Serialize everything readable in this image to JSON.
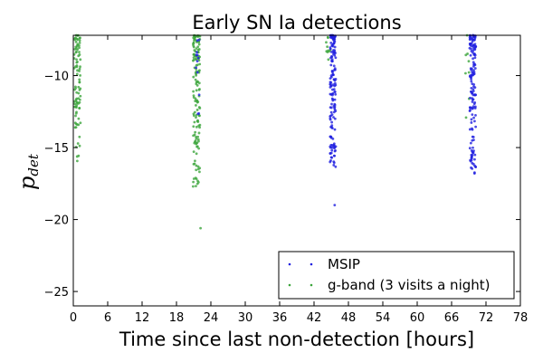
{
  "chart_data": {
    "type": "scatter",
    "title": "Early SN Ia detections",
    "xlabel": "Time since last non-detection [hours]",
    "ylabel_main": "p",
    "ylabel_sub": "det",
    "xlim": [
      0,
      78
    ],
    "ylim": [
      -26,
      -7.2
    ],
    "xticks": [
      "0",
      "6",
      "12",
      "18",
      "24",
      "30",
      "36",
      "42",
      "48",
      "54",
      "60",
      "66",
      "72",
      "78"
    ],
    "yticks": [
      "−10",
      "−15",
      "−20",
      "−25"
    ],
    "ytick_values": [
      -10,
      -15,
      -20,
      -25
    ],
    "legend_position": "lower-right",
    "colors": {
      "MSIP": "#1f1fe0",
      "g-band": "#3ca53c"
    },
    "series": [
      {
        "name": "MSIP",
        "color": "#1f1fe0",
        "clusters": [
          {
            "x_center": 45.3,
            "x_spread": 0.5,
            "y_min": -16.5,
            "y_max": -7.2,
            "n": 150,
            "outliers": [
              [
                45.6,
                -19.0
              ],
              [
                44.8,
                -16.0
              ],
              [
                45.1,
                -15.7
              ]
            ]
          },
          {
            "x_center": 69.7,
            "x_spread": 0.55,
            "y_min": -16.8,
            "y_max": -7.2,
            "n": 150,
            "outliers": [
              [
                70.0,
                -16.8
              ],
              [
                69.4,
                -16.4
              ]
            ]
          },
          {
            "x_center": 21.7,
            "x_spread": 0.35,
            "y_min": -13.0,
            "y_max": -7.2,
            "n": 12,
            "outliers": []
          }
        ]
      },
      {
        "name": "g-band (3 visits a night)",
        "color": "#3ca53c",
        "clusters": [
          {
            "x_center": 0.7,
            "x_spread": 0.55,
            "y_min": -16.0,
            "y_max": -7.2,
            "n": 90,
            "outliers": []
          },
          {
            "x_center": 21.5,
            "x_spread": 0.6,
            "y_min": -17.8,
            "y_max": -7.2,
            "n": 140,
            "outliers": [
              [
                22.2,
                -20.6
              ],
              [
                20.9,
                -17.7
              ]
            ]
          },
          {
            "x_center": 44.5,
            "x_spread": 0.4,
            "y_min": -9.0,
            "y_max": -7.2,
            "n": 10,
            "outliers": []
          },
          {
            "x_center": 68.8,
            "x_spread": 0.4,
            "y_min": -13.5,
            "y_max": -7.2,
            "n": 8,
            "outliers": []
          }
        ]
      }
    ]
  }
}
